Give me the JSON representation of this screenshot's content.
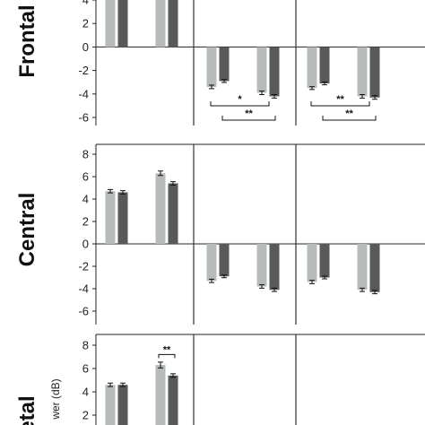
{
  "colors": {
    "light": "#b8bcb9",
    "dark": "#595959",
    "axis": "#222222",
    "divider": "#333333"
  },
  "chart_data": {
    "type": "bar",
    "y_label_partial": "wer (dB)",
    "panels": [
      {
        "name": "Frontal",
        "label_text": "Frontal",
        "ylim": [
          -6.6,
          4
        ],
        "yticks": [
          -6,
          -4,
          -2,
          0,
          2,
          4
        ],
        "groups": [
          {
            "values": [
              5.0,
              5.0
            ],
            "errors": [
              0.0,
              0.0
            ]
          },
          {
            "values": [
              5.0,
              5.0
            ],
            "errors": [
              0.0,
              0.0
            ]
          },
          {
            "values": [
              -3.4,
              -2.9
            ],
            "errors": [
              0.15,
              0.12
            ]
          },
          {
            "values": [
              -3.9,
              -4.2
            ],
            "errors": [
              0.15,
              0.15
            ]
          },
          {
            "values": [
              -3.5,
              -3.1
            ],
            "errors": [
              0.12,
              0.12
            ]
          },
          {
            "values": [
              -4.2,
              -4.3
            ],
            "errors": [
              0.15,
              0.15
            ]
          }
        ],
        "brackets": [
          {
            "from": 2,
            "to": 3,
            "label": "*",
            "level": 0
          },
          {
            "from": 2,
            "to": 3,
            "label": "**",
            "level": 1
          },
          {
            "from": 4,
            "to": 5,
            "label": "**",
            "level": 0
          },
          {
            "from": 4,
            "to": 5,
            "label": "**",
            "level": 1
          }
        ]
      },
      {
        "name": "Central",
        "label_text": "Central",
        "ylim": [
          -6.8,
          8.5
        ],
        "yticks": [
          -6,
          -4,
          -2,
          0,
          2,
          4,
          6,
          8
        ],
        "groups": [
          {
            "values": [
              4.7,
              4.6
            ],
            "errors": [
              0.15,
              0.15
            ]
          },
          {
            "values": [
              6.3,
              5.4
            ],
            "errors": [
              0.2,
              0.15
            ]
          },
          {
            "values": [
              -3.3,
              -2.9
            ],
            "errors": [
              0.15,
              0.12
            ]
          },
          {
            "values": [
              -3.8,
              -4.1
            ],
            "errors": [
              0.15,
              0.15
            ]
          },
          {
            "values": [
              -3.4,
              -3.0
            ],
            "errors": [
              0.15,
              0.12
            ]
          },
          {
            "values": [
              -4.1,
              -4.3
            ],
            "errors": [
              0.15,
              0.15
            ]
          }
        ],
        "brackets": []
      },
      {
        "name": "Parietal",
        "label_text": "etal",
        "ylim": [
          1.5,
          9.2
        ],
        "yticks": [
          2,
          4,
          6,
          8
        ],
        "groups": [
          {
            "values": [
              4.6,
              4.6
            ],
            "errors": [
              0.15,
              0.15
            ]
          },
          {
            "values": [
              6.3,
              5.4
            ],
            "errors": [
              0.25,
              0.15
            ]
          }
        ],
        "brackets": [
          {
            "from": 1,
            "to": 1,
            "label": "**",
            "level": 0
          }
        ]
      }
    ]
  }
}
